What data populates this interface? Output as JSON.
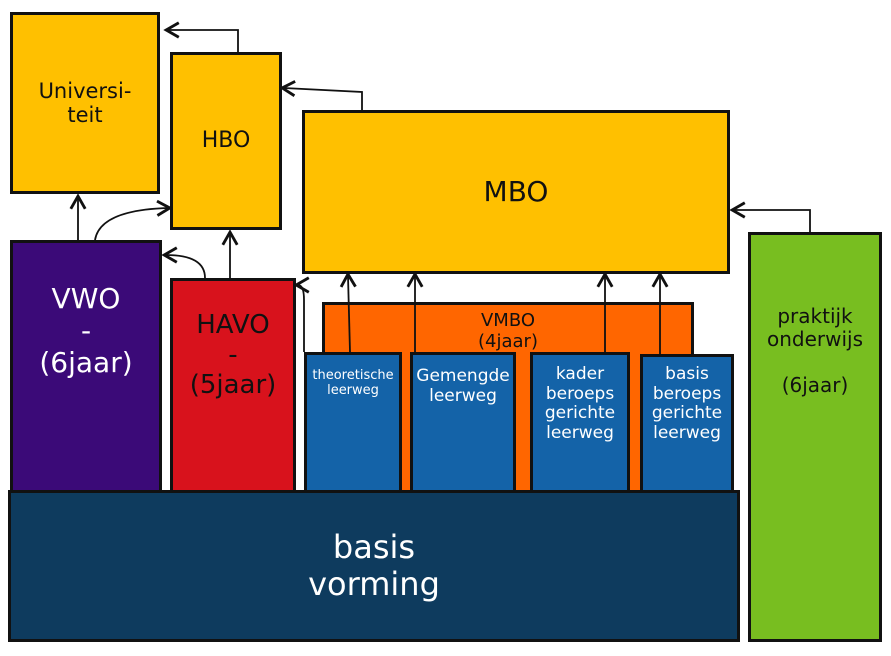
{
  "nodes": {
    "universiteit": "Universi-\nteit",
    "hbo": "HBO",
    "mbo": "MBO",
    "vwo": "VWO\n-\n(6jaar)",
    "havo": "HAVO\n-\n(5jaar)",
    "vmbo": "VMBO\n(4jaar)",
    "theoretische": "theoretische\nleerweg",
    "gemengde": "Gemengde\nleerweg",
    "kader": "kader\nberoeps\ngerichte\nleerweg",
    "basis_beroeps": "basis\nberoeps\ngerichte\nleerweg",
    "basisvorming": "basis\nvorming",
    "praktijk": "praktijk\nonderwijs\n\n(6jaar)"
  },
  "colors": {
    "yellow": "#FFC000",
    "purple": "#3B0A78",
    "red": "#D8121C",
    "orange": "#FF6600",
    "blue": "#1463A8",
    "navy": "#0E3B5E",
    "green": "#78BE20"
  }
}
